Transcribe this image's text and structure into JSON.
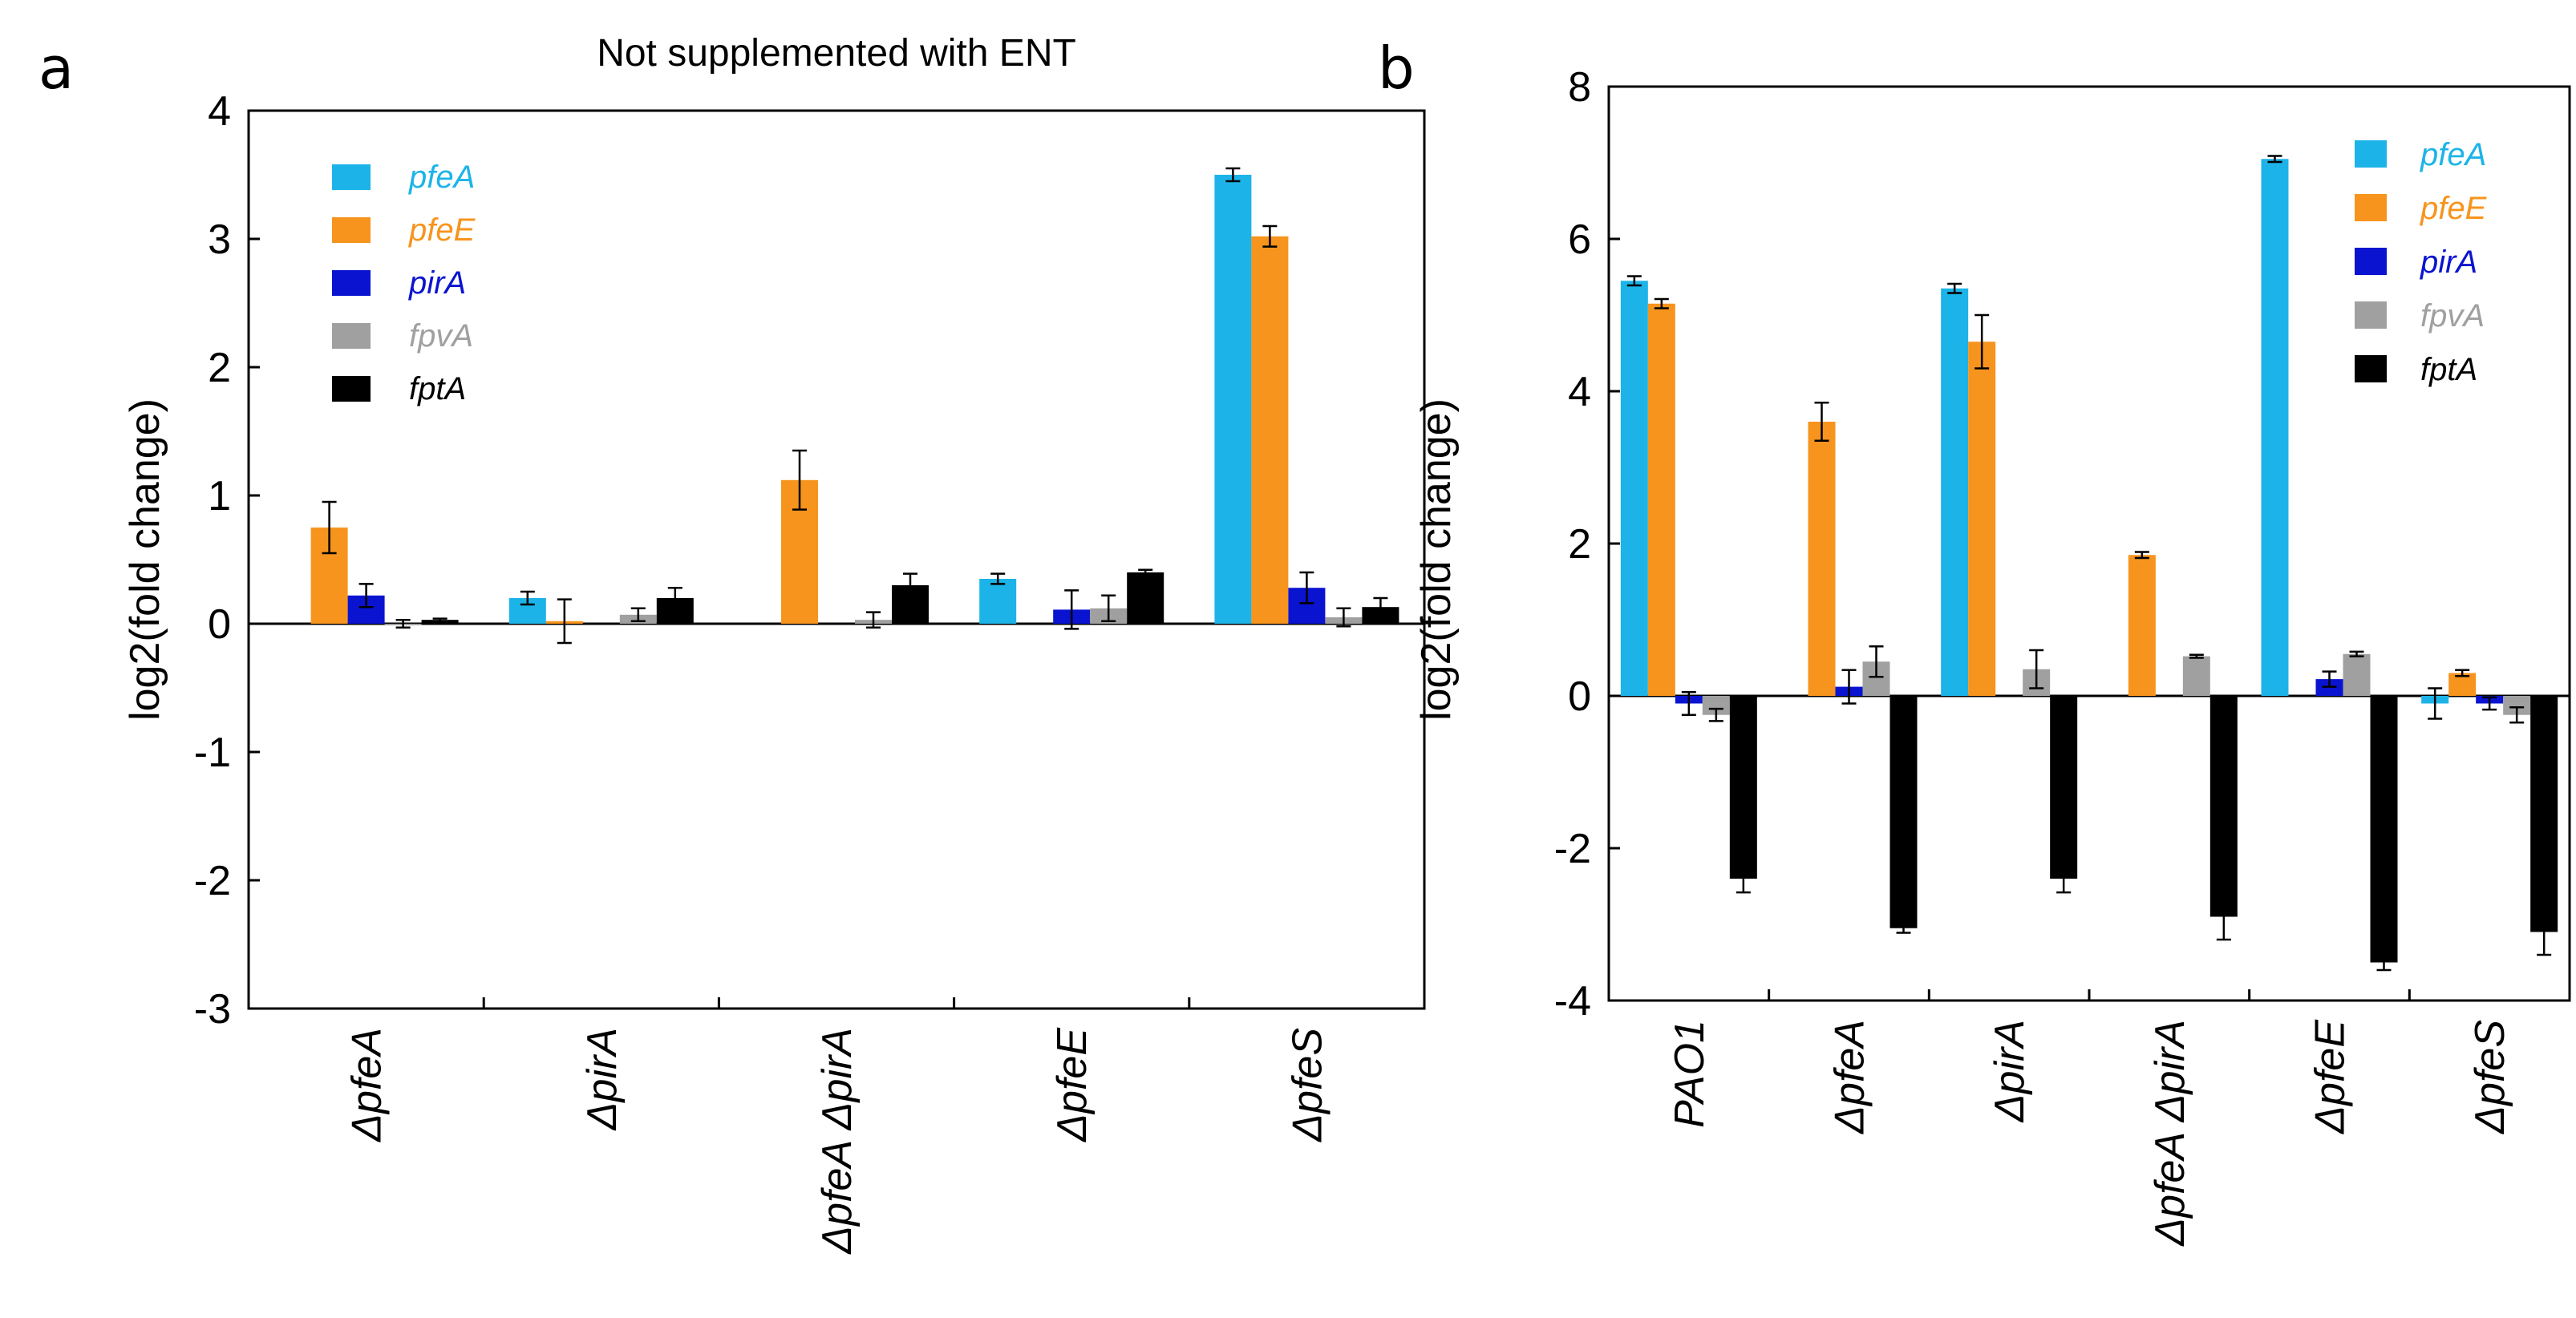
{
  "chart_data": [
    {
      "panel": "a",
      "type": "bar",
      "title": "Not supplemented with ENT",
      "xlabel": "",
      "ylabel": "log2(fold change)",
      "ylim": [
        -3,
        4
      ],
      "yticks": [
        "-3",
        "-2",
        "-1",
        "0",
        "1",
        "2",
        "3",
        "4"
      ],
      "categories": [
        "ΔpfeA",
        "ΔpirA",
        "ΔpfeA ΔpirA",
        "ΔpfeE",
        "ΔpfeS"
      ],
      "series": [
        {
          "name": "pfeA",
          "color": "#1cb4e8",
          "values": [
            0,
            0.2,
            0,
            0.35,
            3.5
          ],
          "errors": [
            0,
            0.05,
            0,
            0.04,
            0.05
          ]
        },
        {
          "name": "pfeE",
          "color": "#f7941d",
          "values": [
            0.75,
            0.02,
            1.12,
            0,
            3.02
          ],
          "errors": [
            0.2,
            0.17,
            0.23,
            0,
            0.08
          ]
        },
        {
          "name": "pirA",
          "color": "#0a14d0",
          "values": [
            0.22,
            0,
            0,
            0.11,
            0.28
          ],
          "errors": [
            0.09,
            0,
            0,
            0.15,
            0.12
          ]
        },
        {
          "name": "fpvA",
          "color": "#a0a0a0",
          "values": [
            0,
            0.07,
            0.03,
            0.12,
            0.05
          ],
          "errors": [
            0.03,
            0.05,
            0.06,
            0.1,
            0.07
          ]
        },
        {
          "name": "fptA",
          "color": "#000000",
          "values": [
            0.03,
            0.2,
            0.3,
            0.4,
            0.13
          ],
          "errors": [
            0.01,
            0.08,
            0.09,
            0.02,
            0.07
          ]
        }
      ],
      "grid": false,
      "legend_position": "top-left"
    },
    {
      "panel": "b",
      "type": "bar",
      "title": "",
      "xlabel": "",
      "ylabel": "log2(fold change)",
      "ylim": [
        -4,
        8
      ],
      "yticks": [
        "-4",
        "-2",
        "0",
        "2",
        "4",
        "6",
        "8"
      ],
      "categories": [
        "PAO1",
        "ΔpfeA",
        "ΔpirA",
        "ΔpfeA ΔpirA",
        "ΔpfeE",
        "ΔpfeS"
      ],
      "series": [
        {
          "name": "pfeA",
          "color": "#1cb4e8",
          "values": [
            5.45,
            0,
            5.35,
            0,
            7.05,
            -0.1
          ],
          "errors": [
            0.06,
            0,
            0.06,
            0,
            0.04,
            0.2
          ]
        },
        {
          "name": "pfeE",
          "color": "#f7941d",
          "values": [
            5.15,
            3.6,
            4.65,
            1.85,
            0,
            0.3
          ],
          "errors": [
            0.06,
            0.25,
            0.35,
            0.04,
            0,
            0.04
          ]
        },
        {
          "name": "pirA",
          "color": "#0a14d0",
          "values": [
            -0.1,
            0.12,
            0,
            0,
            0.22,
            -0.1
          ],
          "errors": [
            0.15,
            0.22,
            0,
            0,
            0.1,
            0.08
          ]
        },
        {
          "name": "fpvA",
          "color": "#a0a0a0",
          "values": [
            -0.25,
            0.45,
            0.35,
            0.52,
            0.55,
            -0.25
          ],
          "errors": [
            0.08,
            0.2,
            0.25,
            0.02,
            0.03,
            0.1
          ]
        },
        {
          "name": "fptA",
          "color": "#000000",
          "values": [
            -2.4,
            -3.05,
            -2.4,
            -2.9,
            -3.5,
            -3.1
          ],
          "errors": [
            0.18,
            0.06,
            0.18,
            0.3,
            0.1,
            0.3
          ]
        }
      ],
      "grid": false,
      "legend_position": "top-right"
    }
  ]
}
